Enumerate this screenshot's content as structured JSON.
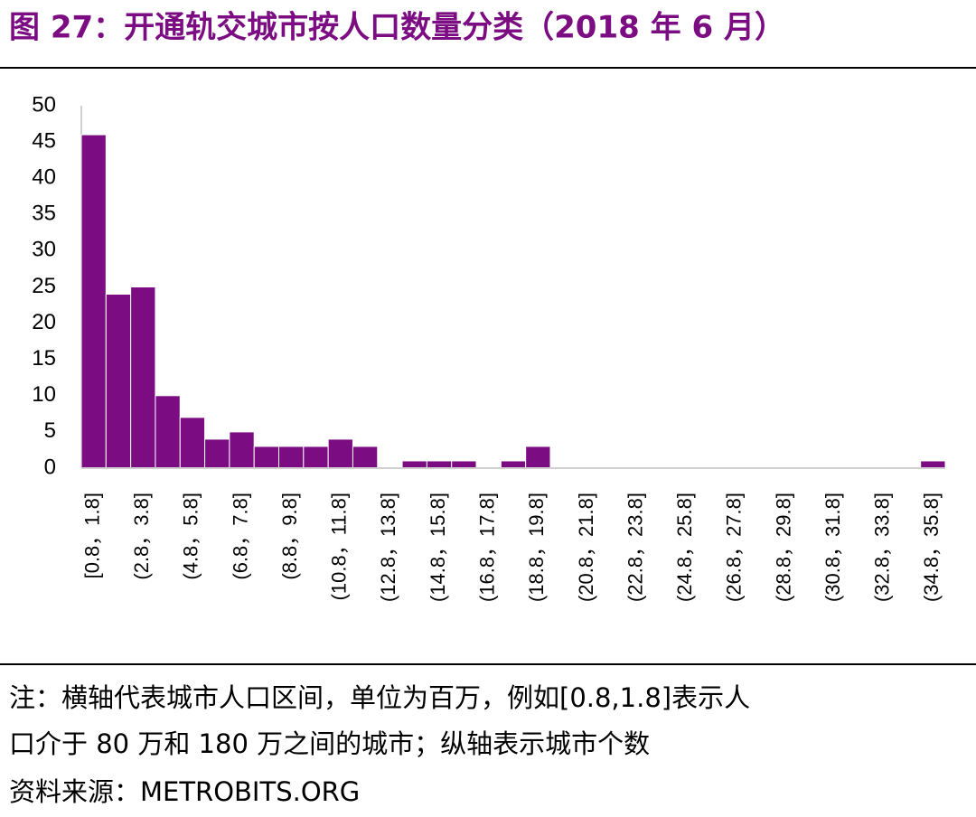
{
  "chart_data": {
    "type": "bar",
    "title": "图 27：开通轨交城市按人口数量分类（2018 年 6 月）",
    "categories": [
      "[0.8，1.8]",
      null,
      "(2.8，3.8]",
      null,
      "(4.8，5.8]",
      null,
      "(6.8，7.8]",
      null,
      "(8.8，9.8]",
      null,
      "(10.8，11.8]",
      null,
      "(12.8，13.8]",
      null,
      "(14.8，15.8]",
      null,
      "(16.8，17.8]",
      null,
      "(18.8，19.8]",
      null,
      "(20.8，21.8]",
      null,
      "(22.8，23.8]",
      null,
      "(24.8，25.8]",
      null,
      "(26.8，27.8]",
      null,
      "(28.8，29.8]",
      null,
      "(30.8，31.8]",
      null,
      "(32.8，33.8]",
      null,
      "(34.8，35.8]"
    ],
    "values": [
      46,
      24,
      25,
      10,
      7,
      4,
      5,
      3,
      3,
      3,
      4,
      3,
      0,
      1,
      1,
      1,
      0,
      1,
      3,
      0,
      0,
      0,
      0,
      0,
      0,
      0,
      0,
      0,
      0,
      0,
      0,
      0,
      0,
      0,
      1
    ],
    "color": "#7b0c82",
    "ylim": [
      0,
      50
    ],
    "yticks": [
      0,
      5,
      10,
      15,
      20,
      25,
      30,
      35,
      40,
      45,
      50
    ],
    "grid": false,
    "notes": [
      "注：横轴代表城市人口区间，单位为百万，例如[0.8,1.8]表示人",
      "口介于 80 万和 180 万之间的城市；纵轴表示城市个数"
    ],
    "source": "资料来源：METROBITS.ORG"
  }
}
